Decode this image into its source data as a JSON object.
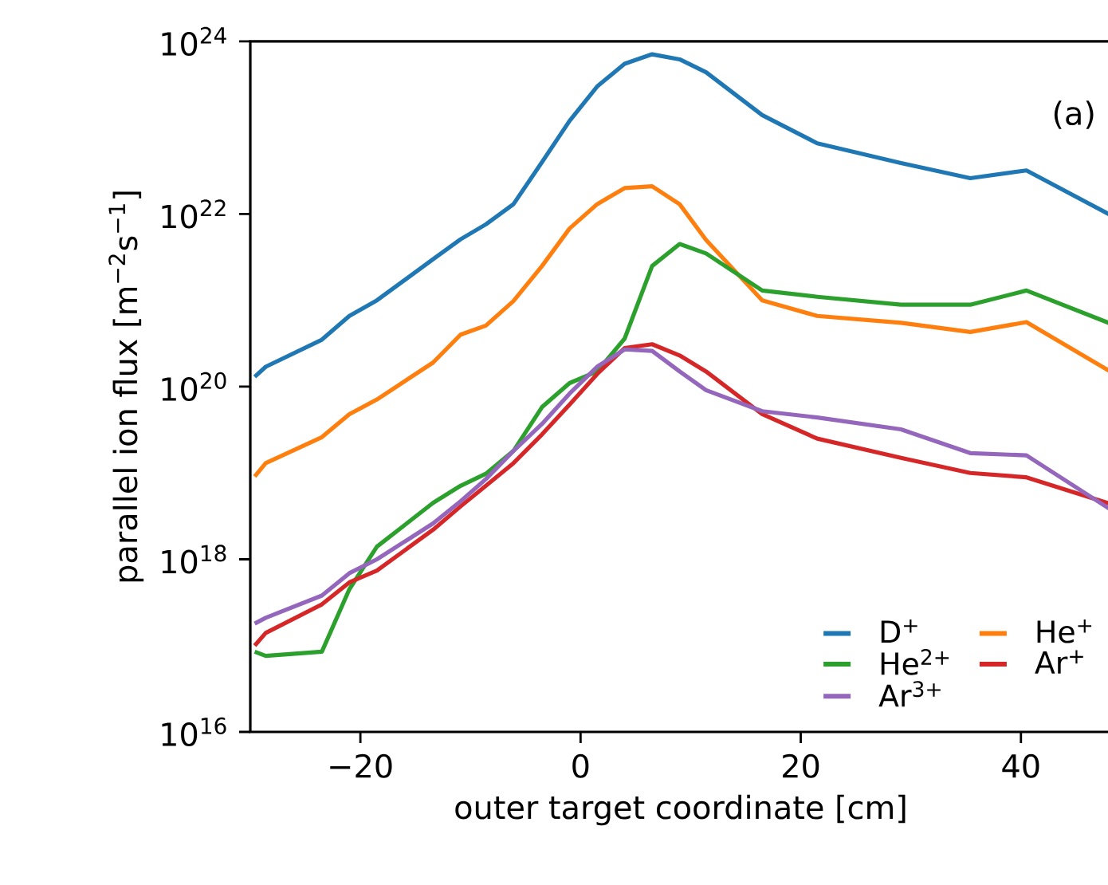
{
  "chart_data": {
    "type": "line",
    "xlabel": "outer target coordinate [cm]",
    "ylabel": "parallel ion flux [m$^{−2}$s$^{−1}$]",
    "annotations": [
      "(a)"
    ],
    "x": [
      -29.6,
      -28.6,
      -23.5,
      -21.0,
      -18.5,
      -13.4,
      -10.9,
      -8.6,
      -6.1,
      -3.5,
      -1.0,
      1.5,
      4.0,
      6.5,
      9.0,
      11.4,
      16.5,
      21.5,
      29.1,
      35.4,
      40.5,
      48.1
    ],
    "series": [
      {
        "name": "D$^{+}$",
        "color": "#1f77b4",
        "values": [
          1.3e+20,
          1.7e+20,
          3.5e+20,
          6.6e+20,
          1e+21,
          3e+21,
          5.1e+21,
          7.6e+21,
          1.3e+22,
          4e+22,
          1.2e+23,
          3e+23,
          5.5e+23,
          7.1e+23,
          6.2e+23,
          4.4e+23,
          1.4e+23,
          6.6e+22,
          3.9e+22,
          2.6e+22,
          3.2e+22,
          9.8e+21
        ]
      },
      {
        "name": "He$^{+}$",
        "color": "#ff7f0e",
        "values": [
          9.1e+18,
          1.3e+19,
          2.6e+19,
          4.8e+19,
          7.1e+19,
          1.9e+20,
          4e+20,
          5.1e+20,
          9.8e+20,
          2.5e+21,
          6.8e+21,
          1.3e+22,
          2e+22,
          2.1e+22,
          1.3e+22,
          5e+21,
          1e+21,
          6.6e+20,
          5.5e+20,
          4.3e+20,
          5.6e+20,
          1.5e+20
        ]
      },
      {
        "name": "He$^{2+}$",
        "color": "#2ca02c",
        "values": [
          8.5e+16,
          7.6e+16,
          8.5e+16,
          4.5e+17,
          1.4e+18,
          4.5e+18,
          7.1e+18,
          9.8e+18,
          1.8e+19,
          5.8e+19,
          1.1e+20,
          1.5e+20,
          3.6e+20,
          2.5e+21,
          4.5e+21,
          3.5e+21,
          1.3e+21,
          1.1e+21,
          8.9e+20,
          8.9e+20,
          1.3e+21,
          5.4e+20
        ]
      },
      {
        "name": "Ar$^{+}$",
        "color": "#d62728",
        "values": [
          1e+17,
          1.4e+17,
          3e+17,
          5.4e+17,
          7.4e+17,
          2.2e+18,
          4.1e+18,
          7.1e+18,
          1.3e+19,
          2.8e+19,
          6.2e+19,
          1.4e+20,
          2.8e+20,
          3.1e+20,
          2.3e+20,
          1.5e+20,
          4.8e+19,
          2.5e+19,
          1.5e+19,
          1e+19,
          8.9e+18,
          4.4e+18
        ]
      },
      {
        "name": "Ar$^{3+}$",
        "color": "#9467bd",
        "values": [
          1.8e+17,
          2.1e+17,
          3.8e+17,
          6.9e+17,
          1e+18,
          2.6e+18,
          4.7e+18,
          8.5e+18,
          1.8e+19,
          3.7e+19,
          8.3e+19,
          1.7e+20,
          2.7e+20,
          2.6e+20,
          1.5e+20,
          9.1e+19,
          5.2e+19,
          4.4e+19,
          3.2e+19,
          1.7e+19,
          1.6e+19,
          3.8e+18
        ]
      }
    ],
    "log": "y",
    "xlim": [
      -30,
      48.2
    ],
    "ylim": [
      1e+16,
      1e+24
    ],
    "xticks": [
      {
        "value": -20,
        "label": "−20"
      },
      0,
      20,
      40
    ],
    "yticks": [
      {
        "value": 1e+16,
        "label": "10$^{16}$"
      },
      {
        "value": 1e+18,
        "label": "10$^{18}$"
      },
      {
        "value": 1e+20,
        "label": "10$^{20}$"
      },
      {
        "value": 1e+22,
        "label": "10$^{22}$"
      },
      {
        "value": 1e+24,
        "label": "10$^{24}$"
      }
    ],
    "legend": "bottom right"
  }
}
